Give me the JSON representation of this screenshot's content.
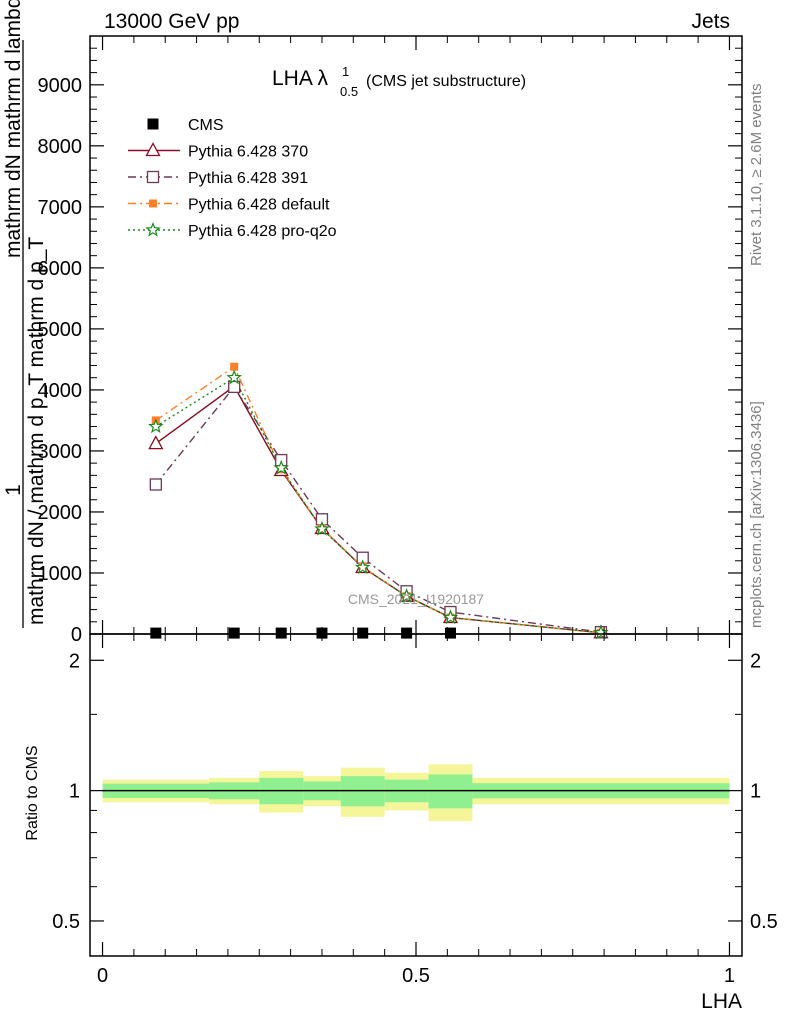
{
  "header": {
    "left": "13000 GeV pp",
    "right": "Jets"
  },
  "title": {
    "main": "LHA λ",
    "sup": "1",
    "sub": "0.5",
    "paren": "(CMS jet substructure)"
  },
  "side_labels": {
    "rivet": "Rivet 3.1.10, ≥ 2.6M events",
    "mcplots": "mcplots.cern.ch [arXiv:1306.3436]"
  },
  "watermark": "CMS_2021_I1920187",
  "ylabel_top": {
    "one": "1",
    "denominator": "mathrm dN / mathrm d p_T mathrm d p_T",
    "numerator": "mathrm dN   mathrm d lambda"
  },
  "ylabel_bottom": "Ratio to CMS",
  "xlabel": "LHA",
  "chart_data": [
    {
      "type": "line",
      "panel": "main",
      "xlim": [
        -0.02,
        1.02
      ],
      "ylim": [
        0,
        9800
      ],
      "yticks": [
        {
          "value": 0,
          "label": "0"
        },
        {
          "value": 1000,
          "label": "1000"
        },
        {
          "value": 2000,
          "label": "2000"
        },
        {
          "value": 3000,
          "label": "3000"
        },
        {
          "value": 4000,
          "label": "4000"
        },
        {
          "value": 5000,
          "label": "5000"
        },
        {
          "value": 6000,
          "label": "6000"
        },
        {
          "value": 7000,
          "label": "7000"
        },
        {
          "value": 8000,
          "label": "8000"
        },
        {
          "value": 9000,
          "label": "9000"
        }
      ],
      "x": [
        0.085,
        0.21,
        0.285,
        0.35,
        0.415,
        0.485,
        0.555,
        0.795
      ],
      "series": [
        {
          "name": "CMS",
          "style": "data",
          "color": "#000000",
          "marker": "square",
          "values": [
            15,
            15,
            15,
            15,
            15,
            15,
            15,
            null
          ]
        },
        {
          "name": "Pythia 6.428 370",
          "style": "solid",
          "color": "#8b0a1f",
          "marker": "triangle-open",
          "values": [
            3120,
            4060,
            2680,
            1730,
            1090,
            620,
            270,
            20
          ]
        },
        {
          "name": "Pythia 6.428 391",
          "style": "dashdot",
          "color": "#6b3a55",
          "marker": "square-open",
          "values": [
            2450,
            4050,
            2850,
            1880,
            1250,
            700,
            360,
            30
          ]
        },
        {
          "name": "Pythia 6.428 default",
          "style": "dashdot",
          "color": "#ff7f2a",
          "marker": "square-filled",
          "values": [
            3500,
            4380,
            2700,
            1730,
            1100,
            620,
            270,
            20
          ]
        },
        {
          "name": "Pythia 6.428 pro-q2o",
          "style": "dotted",
          "color": "#1a8a1a",
          "marker": "star",
          "values": [
            3400,
            4200,
            2720,
            1720,
            1090,
            620,
            270,
            20
          ]
        }
      ]
    },
    {
      "type": "area",
      "panel": "ratio",
      "xlim": [
        -0.02,
        1.02
      ],
      "ylim": [
        0.415,
        2.3
      ],
      "log_y": true,
      "yticks": [
        {
          "value": 0.5,
          "label": "0.5"
        },
        {
          "value": 1,
          "label": "1"
        },
        {
          "value": 2,
          "label": "2"
        }
      ],
      "xticks": [
        {
          "value": 0,
          "label": "0"
        },
        {
          "value": 0.5,
          "label": "0.5"
        },
        {
          "value": 1,
          "label": "1"
        }
      ],
      "bins": [
        {
          "x0": 0.0,
          "x1": 0.17,
          "y_inner": [
            0.962,
            1.038
          ],
          "y_outer": [
            0.94,
            1.06
          ]
        },
        {
          "x0": 0.17,
          "x1": 0.25,
          "y_inner": [
            0.955,
            1.045
          ],
          "y_outer": [
            0.93,
            1.07
          ]
        },
        {
          "x0": 0.25,
          "x1": 0.32,
          "y_inner": [
            0.93,
            1.07
          ],
          "y_outer": [
            0.89,
            1.11
          ]
        },
        {
          "x0": 0.32,
          "x1": 0.38,
          "y_inner": [
            0.95,
            1.05
          ],
          "y_outer": [
            0.92,
            1.08
          ]
        },
        {
          "x0": 0.38,
          "x1": 0.45,
          "y_inner": [
            0.92,
            1.08
          ],
          "y_outer": [
            0.87,
            1.13
          ]
        },
        {
          "x0": 0.45,
          "x1": 0.52,
          "y_inner": [
            0.94,
            1.06
          ],
          "y_outer": [
            0.9,
            1.1
          ]
        },
        {
          "x0": 0.52,
          "x1": 0.59,
          "y_inner": [
            0.91,
            1.09
          ],
          "y_outer": [
            0.85,
            1.15
          ]
        },
        {
          "x0": 0.59,
          "x1": 1.0,
          "y_inner": [
            0.96,
            1.04
          ],
          "y_outer": [
            0.93,
            1.07
          ]
        }
      ],
      "reference": 1,
      "colors": {
        "inner": "#90f090",
        "outer": "#f5f59a",
        "line": "#000000"
      }
    }
  ]
}
